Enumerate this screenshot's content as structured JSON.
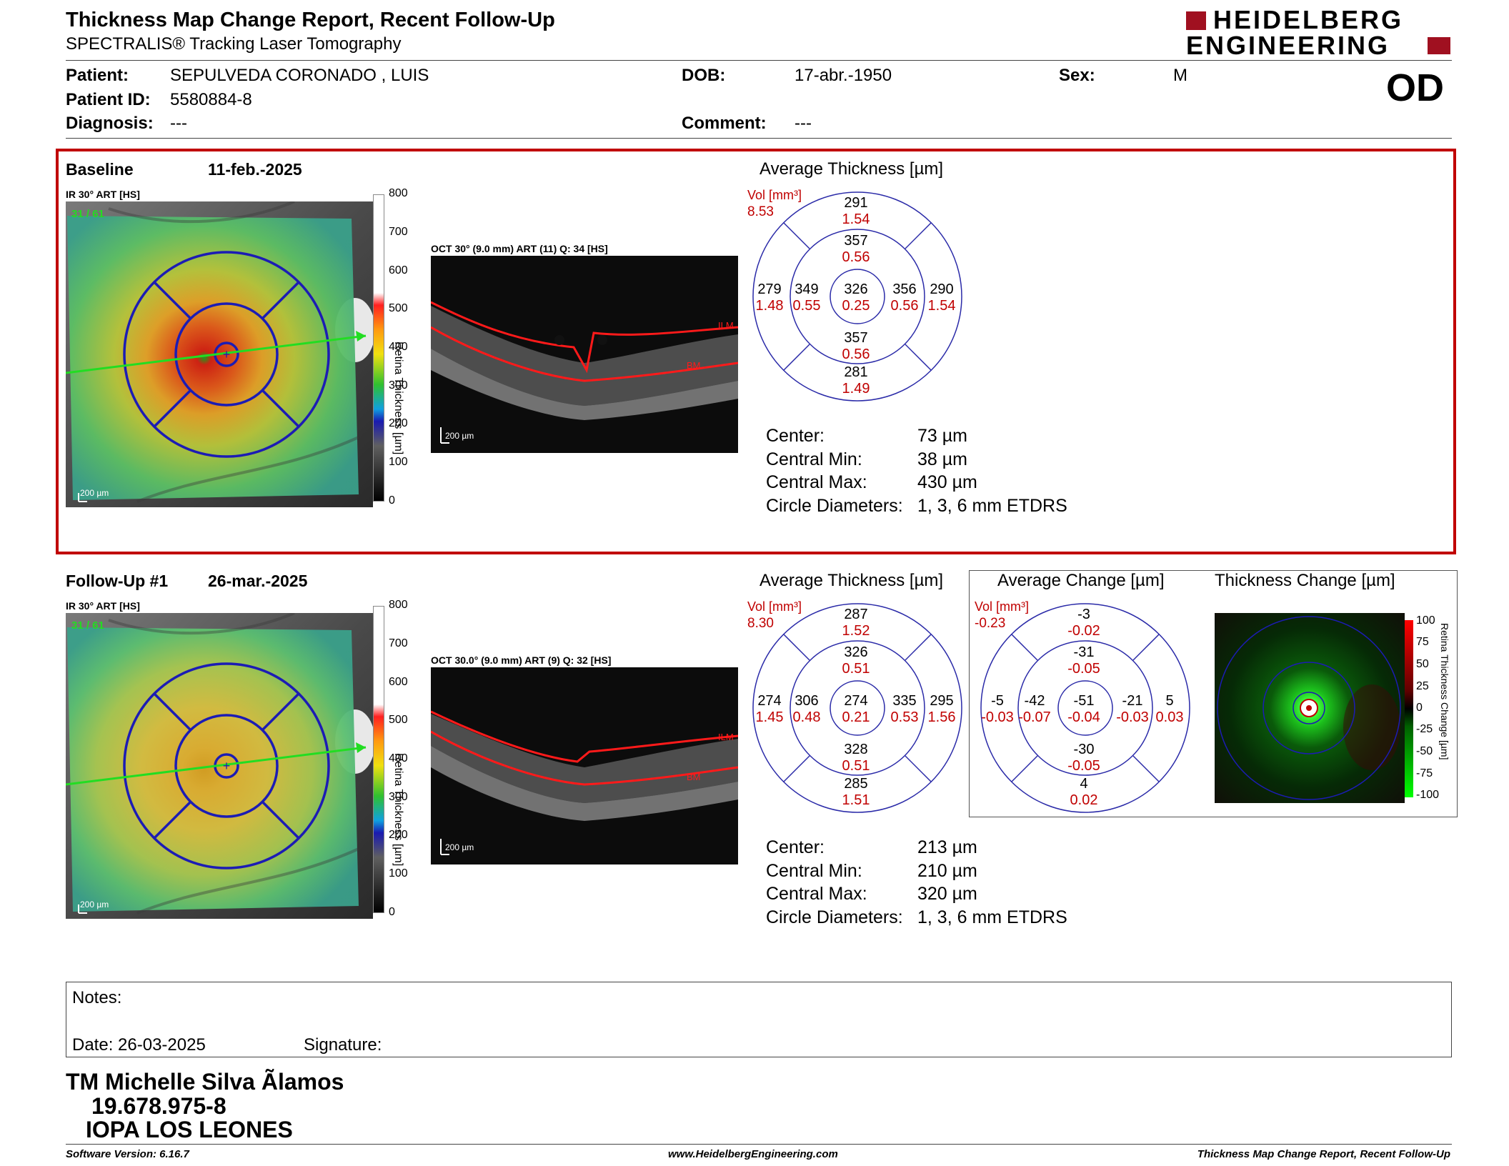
{
  "header": {
    "title": "Thickness Map Change Report, Recent Follow-Up",
    "subtitle": "SPECTRALIS® Tracking Laser Tomography",
    "logo_line1": "HEIDELBERG",
    "logo_line2": "ENGINEERING",
    "eye": "OD"
  },
  "patient": {
    "patient_label": "Patient:",
    "patient_value": "SEPULVEDA CORONADO , LUIS",
    "id_label": "Patient ID:",
    "id_value": "5580884-8",
    "diagnosis_label": "Diagnosis:",
    "diagnosis_value": "---",
    "dob_label": "DOB:",
    "dob_value": "17-abr.-1950",
    "comment_label": "Comment:",
    "comment_value": "---",
    "sex_label": "Sex:",
    "sex_value": "M"
  },
  "colors": {
    "accent_red": "#c00000",
    "grid_blue": "#1c1cb4",
    "line_green": "#22dd22"
  },
  "baseline": {
    "label": "Baseline",
    "date": "11-feb.-2025",
    "ir_label": "IR 30° ART [HS]",
    "frame_counter": "31 / 61",
    "scale_text": "200 µm",
    "oct_label": "OCT 30° (9.0 mm) ART (11) Q: 34 [HS]",
    "oct_scale": "200 µm",
    "ilm": "ILM",
    "bm": "BM",
    "colorbar_title": "Retina Thickness [µm]",
    "colorbar_ticks": [
      "800",
      "700",
      "600",
      "500",
      "400",
      "300",
      "200",
      "100",
      "0"
    ],
    "avg_title": "Average Thickness [µm]",
    "vol_label": "Vol [mm³]",
    "vol_value": "8.53",
    "sectors": {
      "outer_sup": {
        "t": "291",
        "v": "1.54"
      },
      "inner_sup": {
        "t": "357",
        "v": "0.56"
      },
      "outer_temp": {
        "t": "279",
        "v": "1.48"
      },
      "inner_temp": {
        "t": "349",
        "v": "0.55"
      },
      "center": {
        "t": "326",
        "v": "0.25"
      },
      "inner_nas": {
        "t": "356",
        "v": "0.56"
      },
      "outer_nas": {
        "t": "290",
        "v": "1.54"
      },
      "inner_inf": {
        "t": "357",
        "v": "0.56"
      },
      "outer_inf": {
        "t": "281",
        "v": "1.49"
      }
    },
    "stats": [
      {
        "label": "Center:",
        "value": "73 µm"
      },
      {
        "label": "Central Min:",
        "value": "38 µm"
      },
      {
        "label": "Central Max:",
        "value": "430 µm"
      },
      {
        "label": "Circle Diameters:",
        "value": "1, 3, 6 mm ETDRS"
      }
    ]
  },
  "followup": {
    "label": "Follow-Up #1",
    "date": "26-mar.-2025",
    "ir_label": "IR 30° ART [HS]",
    "frame_counter": "31 / 61",
    "scale_text": "200 µm",
    "oct_label": "OCT 30.0° (9.0 mm) ART (9) Q: 32 [HS]",
    "oct_scale": "200 µm",
    "ilm": "ILM",
    "bm": "BM",
    "colorbar_title": "Retina Thickness [µm]",
    "colorbar_ticks": [
      "800",
      "700",
      "600",
      "500",
      "400",
      "300",
      "200",
      "100",
      "0"
    ],
    "avg_title": "Average Thickness [µm]",
    "vol_label": "Vol [mm³]",
    "vol_value": "8.30",
    "sectors": {
      "outer_sup": {
        "t": "287",
        "v": "1.52"
      },
      "inner_sup": {
        "t": "326",
        "v": "0.51"
      },
      "outer_temp": {
        "t": "274",
        "v": "1.45"
      },
      "inner_temp": {
        "t": "306",
        "v": "0.48"
      },
      "center": {
        "t": "274",
        "v": "0.21"
      },
      "inner_nas": {
        "t": "335",
        "v": "0.53"
      },
      "outer_nas": {
        "t": "295",
        "v": "1.56"
      },
      "inner_inf": {
        "t": "328",
        "v": "0.51"
      },
      "outer_inf": {
        "t": "285",
        "v": "1.51"
      }
    },
    "stats": [
      {
        "label": "Center:",
        "value": "213 µm"
      },
      {
        "label": "Central Min:",
        "value": "210 µm"
      },
      {
        "label": "Central Max:",
        "value": "320 µm"
      },
      {
        "label": "Circle Diameters:",
        "value": "1, 3, 6 mm ETDRS"
      }
    ]
  },
  "change": {
    "avg_title": "Average Change [µm]",
    "vol_label": "Vol [mm³]",
    "vol_value": "-0.23",
    "sectors": {
      "outer_sup": {
        "t": "-3",
        "v": "-0.02"
      },
      "inner_sup": {
        "t": "-31",
        "v": "-0.05"
      },
      "outer_temp": {
        "t": "-5",
        "v": "-0.03"
      },
      "inner_temp": {
        "t": "-42",
        "v": "-0.07"
      },
      "center": {
        "t": "-51",
        "v": "-0.04"
      },
      "inner_nas": {
        "t": "-21",
        "v": "-0.03"
      },
      "outer_nas": {
        "t": "5",
        "v": "0.03"
      },
      "inner_inf": {
        "t": "-30",
        "v": "-0.05"
      },
      "outer_inf": {
        "t": "4",
        "v": "0.02"
      }
    },
    "map_title": "Thickness Change [µm]",
    "map_axis_title": "Retina Thickness Change [µm]",
    "map_ticks": [
      "100",
      "75",
      "50",
      "25",
      "0",
      "-25",
      "-50",
      "-75",
      "-100"
    ]
  },
  "notes": {
    "label": "Notes:",
    "date_label": "Date: 26-03-2025",
    "signature_label": "Signature:"
  },
  "operator": {
    "name": "TM Michelle Silva Ãlamos",
    "id": "19.678.975-8",
    "institution": "IOPA LOS LEONES"
  },
  "footer": {
    "software": "Software Version: 6.16.7",
    "website": "www.HeidelbergEngineering.com",
    "report": "Thickness Map Change Report, Recent Follow-Up"
  }
}
